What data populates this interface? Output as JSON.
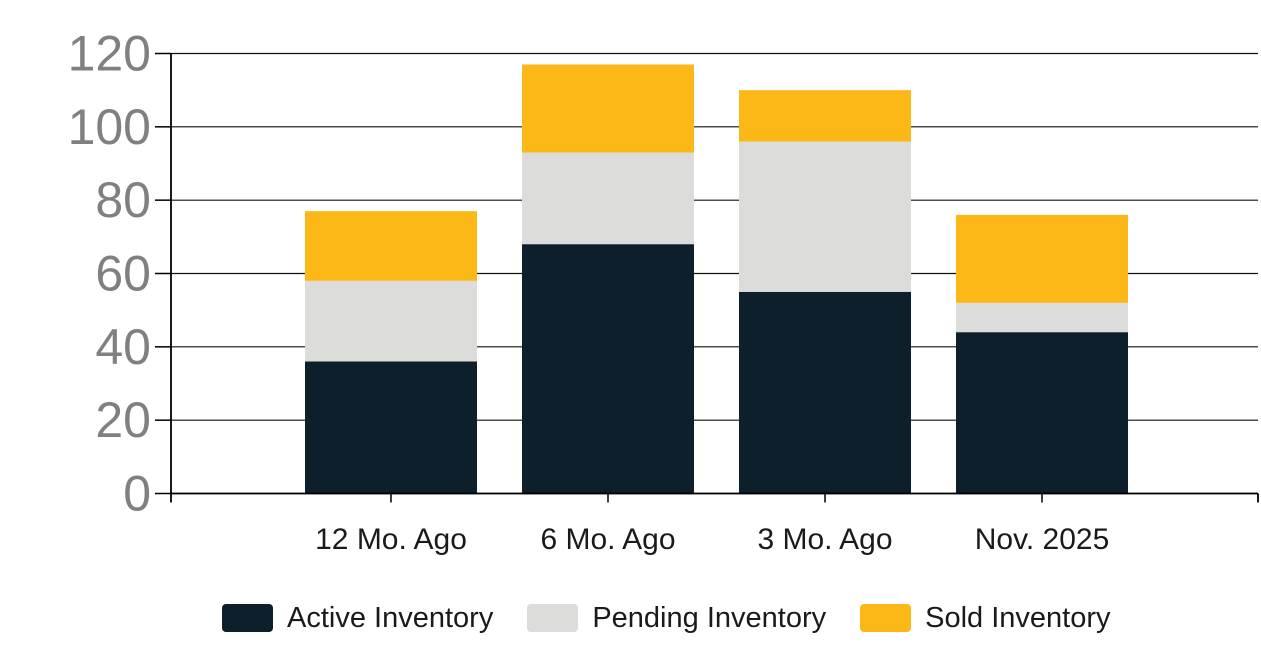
{
  "chart_data": {
    "type": "bar",
    "stacked": true,
    "title": "",
    "categories": [
      "12 Mo. Ago",
      "6 Mo. Ago",
      "3 Mo. Ago",
      "Nov. 2025"
    ],
    "series": [
      {
        "name": "Active Inventory",
        "color": "#0c1f2b",
        "values": [
          36,
          68,
          55,
          44
        ]
      },
      {
        "name": "Pending Inventory",
        "color": "#dcdcdb",
        "values": [
          22,
          25,
          41,
          8
        ]
      },
      {
        "name": "Sold Inventory",
        "color": "#fbb817",
        "values": [
          19,
          24,
          14,
          24
        ]
      }
    ],
    "stack_totals": [
      77,
      117,
      110,
      76
    ],
    "ylim": [
      0,
      120
    ],
    "yticks": [
      0,
      20,
      40,
      60,
      80,
      100,
      120
    ],
    "grid": true,
    "legend_position": "bottom"
  },
  "colors": {
    "background": "#ffffff",
    "grid": "#111111",
    "axis": "#000000",
    "y_tick_label": "#808080",
    "x_tick_label": "#1a1a1a",
    "legend_text": "#1a1a1a"
  }
}
